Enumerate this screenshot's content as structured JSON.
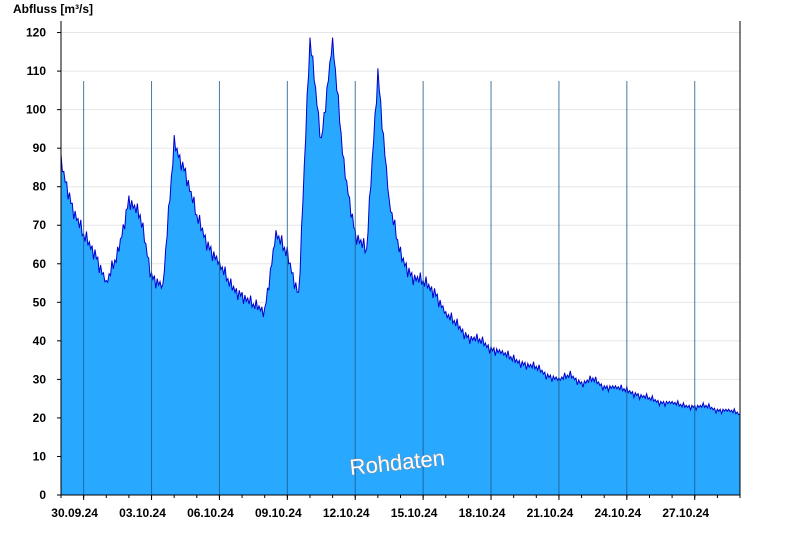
{
  "chart_data": {
    "type": "area",
    "ylabel": "Abfluss [m³/s]",
    "ylim": [
      0,
      123
    ],
    "yticks": [
      0,
      10,
      20,
      30,
      40,
      50,
      60,
      70,
      80,
      90,
      100,
      110,
      120
    ],
    "xlim": [
      "2024-09-29T00:00",
      "2024-10-29T00:00"
    ],
    "xtick_labels": [
      "30.09.24",
      "03.10.24",
      "06.10.24",
      "09.10.24",
      "12.10.24",
      "15.10.24",
      "18.10.24",
      "21.10.24",
      "24.10.24",
      "27.10.24"
    ],
    "xtick_dates": [
      "2024-09-30",
      "2024-10-03",
      "2024-10-06",
      "2024-10-09",
      "2024-10-12",
      "2024-10-15",
      "2024-10-18",
      "2024-10-21",
      "2024-10-24",
      "2024-10-27"
    ],
    "grid": true,
    "fill_color": "#29a8ff",
    "line_color": "#0000cc",
    "annotation": "Rohdaten",
    "series": [
      {
        "x": [
          "2024-09-29T00:00",
          "2024-09-29T12:00",
          "2024-09-30T00:00",
          "2024-09-30T12:00",
          "2024-10-01T00:00",
          "2024-10-01T12:00",
          "2024-10-02T00:00",
          "2024-10-02T12:00",
          "2024-10-03T00:00",
          "2024-10-03T12:00",
          "2024-10-04T00:00",
          "2024-10-04T12:00",
          "2024-10-05T00:00",
          "2024-10-05T12:00",
          "2024-10-06T00:00",
          "2024-10-06T12:00",
          "2024-10-07T00:00",
          "2024-10-07T12:00",
          "2024-10-08T00:00",
          "2024-10-08T12:00",
          "2024-10-09T00:00",
          "2024-10-09T12:00",
          "2024-10-10T00:00",
          "2024-10-10T12:00",
          "2024-10-11T00:00",
          "2024-10-11T12:00",
          "2024-10-12T00:00",
          "2024-10-12T12:00",
          "2024-10-13T00:00",
          "2024-10-13T12:00",
          "2024-10-14T00:00",
          "2024-10-14T12:00",
          "2024-10-15T00:00",
          "2024-10-15T12:00",
          "2024-10-16T00:00",
          "2024-10-16T12:00",
          "2024-10-17T00:00",
          "2024-10-17T12:00",
          "2024-10-18T00:00",
          "2024-10-18T12:00",
          "2024-10-19T00:00",
          "2024-10-19T12:00",
          "2024-10-20T00:00",
          "2024-10-20T12:00",
          "2024-10-21T00:00",
          "2024-10-21T12:00",
          "2024-10-22T00:00",
          "2024-10-22T12:00",
          "2024-10-23T00:00",
          "2024-10-23T12:00",
          "2024-10-24T00:00",
          "2024-10-24T12:00",
          "2024-10-25T00:00",
          "2024-10-25T12:00",
          "2024-10-26T00:00",
          "2024-10-26T12:00",
          "2024-10-27T00:00",
          "2024-10-27T12:00",
          "2024-10-28T00:00",
          "2024-10-28T12:00",
          "2024-10-29T00:00"
        ],
        "y": [
          86,
          75,
          67,
          63,
          55,
          62,
          77,
          72,
          57,
          54,
          91,
          84,
          72,
          65,
          60,
          54,
          52,
          49,
          48,
          68,
          62,
          52,
          118,
          92,
          118,
          85,
          68,
          63,
          110,
          76,
          62,
          57,
          55,
          53,
          47,
          44,
          41,
          40,
          38,
          37,
          35,
          34,
          33,
          31,
          30,
          31,
          29,
          30,
          28,
          28,
          27,
          26,
          25,
          24,
          24,
          23,
          23,
          23,
          22,
          22,
          21
        ]
      }
    ]
  }
}
